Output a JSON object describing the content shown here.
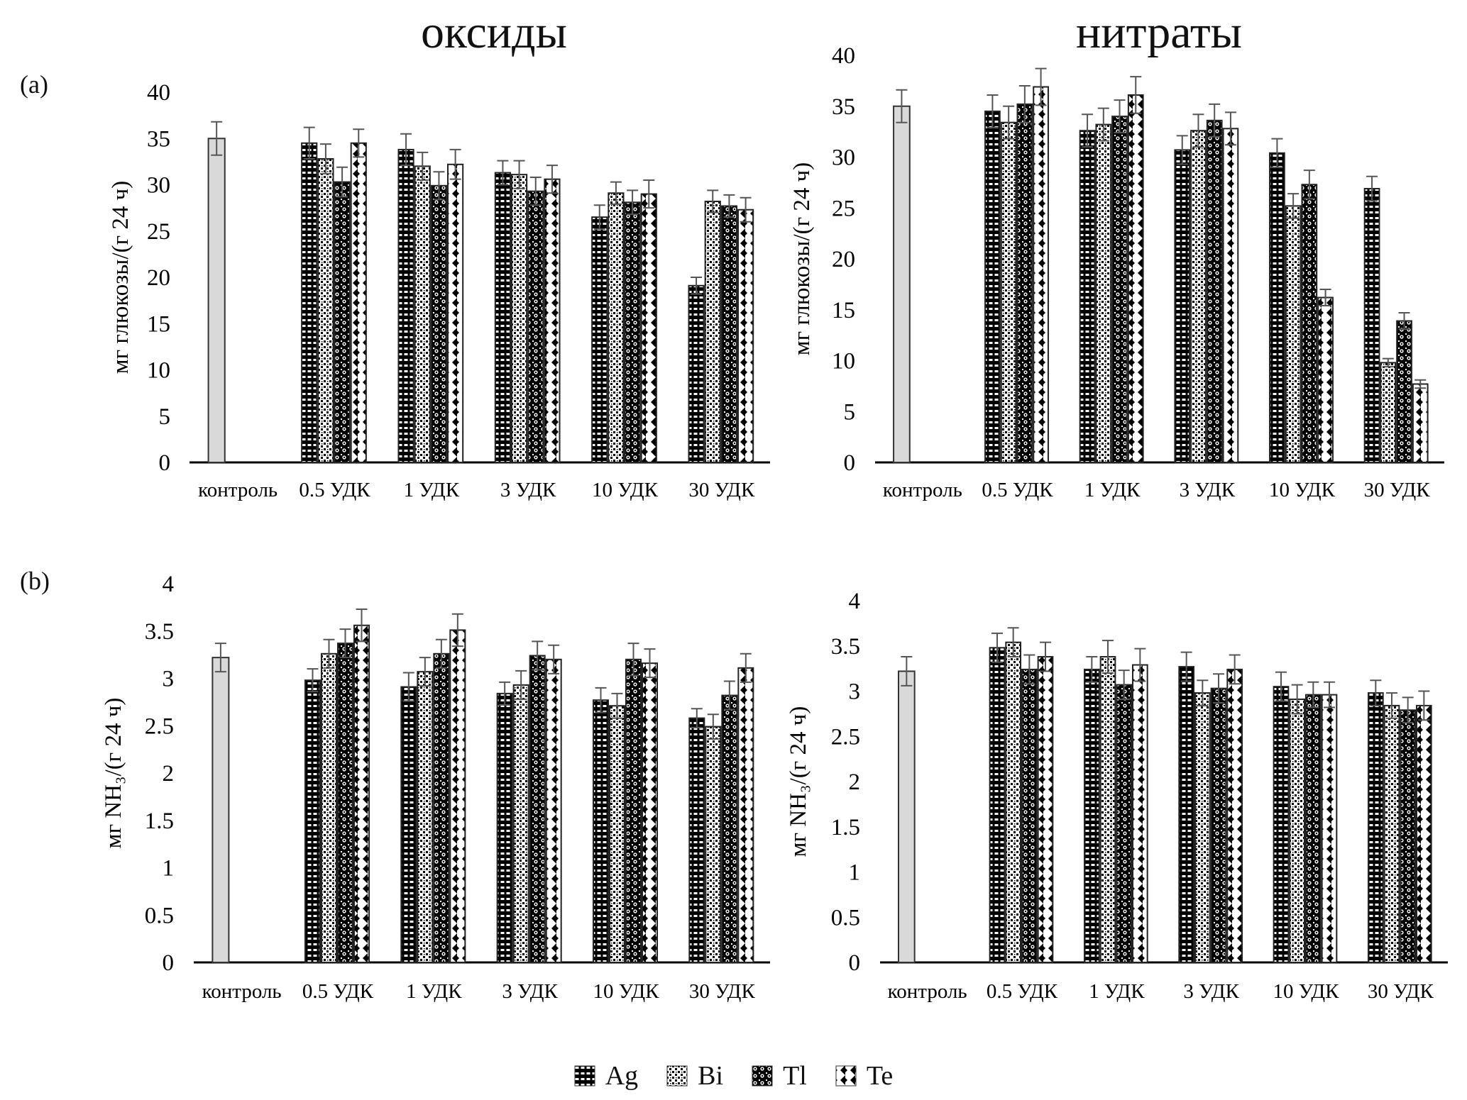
{
  "titles": {
    "left": "оксиды",
    "right": "нитраты"
  },
  "panel_labels": {
    "a": "(a)",
    "b": "(b)"
  },
  "legend": [
    "Ag",
    "Bi",
    "Tl",
    "Te"
  ],
  "chart_data": [
    {
      "id": "a-oxides",
      "type": "bar",
      "title": "оксиды",
      "ylabel": "мг глюкозы/(г 24 ч)",
      "xlabel": "",
      "ylim": [
        0,
        40
      ],
      "yticks": [
        0,
        5,
        10,
        15,
        20,
        25,
        30,
        35,
        40
      ],
      "categories": [
        "контроль",
        "0.5 УДК",
        "1 УДК",
        "3 УДК",
        "10 УДК",
        "30 УДК"
      ],
      "control": {
        "name": "контроль",
        "value": 35.0,
        "error": 1.8
      },
      "series": [
        {
          "name": "Ag",
          "values": [
            null,
            34.5,
            33.8,
            31.3,
            26.5,
            19.1
          ],
          "errors": [
            null,
            1.7,
            1.7,
            1.3,
            1.3,
            0.9
          ]
        },
        {
          "name": "Bi",
          "values": [
            null,
            32.8,
            32.0,
            31.1,
            29.1,
            28.2
          ],
          "errors": [
            null,
            1.6,
            1.5,
            1.5,
            1.2,
            1.2
          ]
        },
        {
          "name": "Tl",
          "values": [
            null,
            30.3,
            29.9,
            29.3,
            28.1,
            27.7
          ],
          "errors": [
            null,
            1.6,
            1.5,
            1.5,
            1.3,
            1.2
          ]
        },
        {
          "name": "Te",
          "values": [
            null,
            34.5,
            32.2,
            30.6,
            29.0,
            27.3
          ],
          "errors": [
            null,
            1.5,
            1.6,
            1.5,
            1.5,
            1.3
          ]
        }
      ],
      "grid": false
    },
    {
      "id": "a-nitrates",
      "type": "bar",
      "title": "нитраты",
      "ylabel": "мг глюкозы/(г 24 ч)",
      "xlabel": "",
      "ylim": [
        0,
        40
      ],
      "yticks": [
        0,
        5,
        10,
        15,
        20,
        25,
        30,
        35,
        40
      ],
      "categories": [
        "контроль",
        "0.5 УДК",
        "1 УДК",
        "3 УДК",
        "10 УДК",
        "30 УДК"
      ],
      "control": {
        "name": "контроль",
        "value": 35.0,
        "error": 1.6
      },
      "series": [
        {
          "name": "Ag",
          "values": [
            null,
            34.5,
            32.6,
            30.7,
            30.4,
            26.9
          ],
          "errors": [
            null,
            1.6,
            1.6,
            1.4,
            1.4,
            1.2
          ]
        },
        {
          "name": "Bi",
          "values": [
            null,
            33.4,
            33.2,
            32.6,
            25.2,
            9.8
          ],
          "errors": [
            null,
            1.6,
            1.6,
            1.6,
            1.2,
            0.4
          ]
        },
        {
          "name": "Tl",
          "values": [
            null,
            35.2,
            34.0,
            33.6,
            27.3,
            13.9
          ],
          "errors": [
            null,
            1.8,
            1.6,
            1.6,
            1.4,
            0.8
          ]
        },
        {
          "name": "Te",
          "values": [
            null,
            36.9,
            36.1,
            32.8,
            16.2,
            7.7
          ],
          "errors": [
            null,
            1.8,
            1.8,
            1.6,
            0.8,
            0.4
          ]
        }
      ],
      "grid": false
    },
    {
      "id": "b-oxides",
      "type": "bar",
      "title": "",
      "ylabel": "мг NH₃/(г 24 ч)",
      "xlabel": "",
      "ylim": [
        0,
        4
      ],
      "yticks": [
        0,
        0.5,
        1,
        1.5,
        2,
        2.5,
        3,
        3.5,
        4
      ],
      "categories": [
        "контроль",
        "0.5 УДК",
        "1 УДК",
        "3 УДК",
        "10 УДК",
        "30 УДК"
      ],
      "control": {
        "name": "контроль",
        "value": 3.22,
        "error": 0.15
      },
      "series": [
        {
          "name": "Ag",
          "values": [
            null,
            2.98,
            2.91,
            2.84,
            2.77,
            2.58
          ],
          "errors": [
            null,
            0.12,
            0.15,
            0.12,
            0.13,
            0.1
          ]
        },
        {
          "name": "Bi",
          "values": [
            null,
            3.26,
            3.07,
            2.93,
            2.71,
            2.49
          ],
          "errors": [
            null,
            0.15,
            0.15,
            0.15,
            0.13,
            0.13
          ]
        },
        {
          "name": "Tl",
          "values": [
            null,
            3.37,
            3.26,
            3.24,
            3.2,
            2.82
          ],
          "errors": [
            null,
            0.15,
            0.15,
            0.15,
            0.17,
            0.15
          ]
        },
        {
          "name": "Te",
          "values": [
            null,
            3.56,
            3.51,
            3.2,
            3.16,
            3.11
          ],
          "errors": [
            null,
            0.17,
            0.17,
            0.15,
            0.15,
            0.15
          ]
        }
      ],
      "grid": false
    },
    {
      "id": "b-nitrates",
      "type": "bar",
      "title": "",
      "ylabel": "мг NH₃/(г 24 ч)",
      "xlabel": "",
      "ylim": [
        0,
        4
      ],
      "yticks": [
        0,
        0.5,
        1,
        1.5,
        2,
        2.5,
        3,
        3.5,
        4
      ],
      "categories": [
        "контроль",
        "0.5 УДК",
        "1 УДК",
        "3 УДК",
        "10 УДК",
        "30 УДК"
      ],
      "control": {
        "name": "контроль",
        "value": 3.22,
        "error": 0.16
      },
      "series": [
        {
          "name": "Ag",
          "values": [
            null,
            3.48,
            3.24,
            3.27,
            3.05,
            2.98
          ],
          "errors": [
            null,
            0.16,
            0.14,
            0.16,
            0.16,
            0.14
          ]
        },
        {
          "name": "Bi",
          "values": [
            null,
            3.54,
            3.38,
            2.98,
            2.91,
            2.84
          ],
          "errors": [
            null,
            0.16,
            0.18,
            0.14,
            0.16,
            0.14
          ]
        },
        {
          "name": "Tl",
          "values": [
            null,
            3.24,
            3.07,
            3.03,
            2.96,
            2.79
          ],
          "errors": [
            null,
            0.16,
            0.16,
            0.16,
            0.14,
            0.14
          ]
        },
        {
          "name": "Te",
          "values": [
            null,
            3.38,
            3.29,
            3.24,
            2.96,
            2.84
          ],
          "errors": [
            null,
            0.16,
            0.18,
            0.16,
            0.14,
            0.16
          ]
        }
      ],
      "grid": false
    }
  ]
}
